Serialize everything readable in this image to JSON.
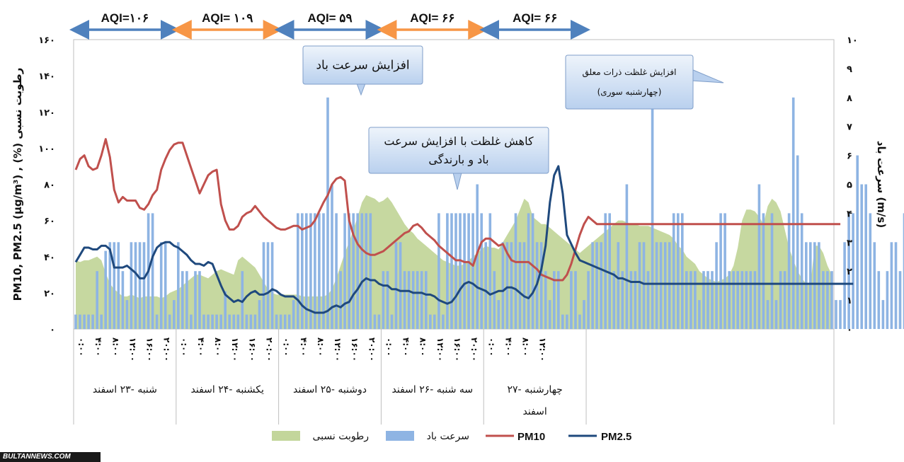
{
  "chart_data": {
    "type": "bar-line-area",
    "aqi_segments": [
      {
        "label": "AQI=۱۰۶",
        "color": "#4f81bd"
      },
      {
        "label": "AQI= ۱۰۹",
        "color": "#f79646"
      },
      {
        "label": "AQI= ۵۹",
        "color": "#4f81bd"
      },
      {
        "label": "AQI= ۶۶",
        "color": "#f79646"
      },
      {
        "label": "AQI= ۶۶",
        "color": "#4f81bd"
      }
    ],
    "left_axis": {
      "label": "PM10, PM2.5 (μg/m³) , (%) رطوبت نسبی",
      "range": [
        0,
        160
      ],
      "ticks": [
        "۰",
        "۲۰",
        "۴۰",
        "۶۰",
        "۸۰",
        "۱۰۰",
        "۱۲۰",
        "۱۴۰",
        "۱۶۰"
      ]
    },
    "right_axis": {
      "label": "سرعت باد (m/s)",
      "range": [
        0,
        10
      ],
      "ticks": [
        "۰",
        "۱",
        "۲",
        "۳",
        "۴",
        "۵",
        "۶",
        "۷",
        "۸",
        "۹",
        "۱۰"
      ]
    },
    "x_tick_labels": [
      "۰:۰۰",
      "۴:۰۰",
      "۸:۰۰",
      "۱۲:۰۰",
      "۱۶:۰۰",
      "۲۰:۰۰",
      "۰:۰۰",
      "۴:۰۰",
      "۸:۰۰",
      "۱۲:۰۰",
      "۱۶:۰۰",
      "۲۰:۰۰",
      "۰:۰۰",
      "۴:۰۰",
      "۸:۰۰",
      "۱۲:۰۰",
      "۱۶:۰۰",
      "۲۰:۰۰",
      "۰:۰۰",
      "۴:۰۰",
      "۸:۰۰",
      "۱۲:۰۰",
      "۱۶:۰۰",
      "۲۰:۰۰",
      "۰:۰۰",
      "۴:۰۰",
      "۸:۰۰",
      "۱۲:۰۰"
    ],
    "days": [
      "شنبه -۲۳ اسفند",
      "یکشنبه -۲۴ اسفند",
      "دوشنبه -۲۵ اسفند",
      "سه شنبه -۲۶ اسفند",
      "چهارشنبه -۲۷ اسفند"
    ],
    "points_per_day": 24,
    "series": [
      {
        "name": "رطوبت نسبی",
        "kind": "area",
        "axis": "left",
        "color": "#c3d69b",
        "values": [
          38,
          37,
          38,
          38,
          39,
          40,
          38,
          31,
          25,
          22,
          20,
          18,
          18,
          19,
          18,
          17,
          18,
          18,
          18,
          18,
          17,
          18,
          20,
          21,
          22,
          24,
          26,
          28,
          30,
          30,
          29,
          28,
          30,
          32,
          33,
          32,
          31,
          30,
          38,
          40,
          38,
          36,
          34,
          30,
          26,
          22,
          20,
          19,
          19,
          19,
          19,
          19,
          19,
          18,
          18,
          18,
          18,
          18,
          18,
          19,
          22,
          28,
          35,
          42,
          48,
          55,
          62,
          70,
          74,
          73,
          72,
          70,
          71,
          73,
          70,
          66,
          62,
          58,
          55,
          53,
          50,
          48,
          46,
          44,
          42,
          40,
          38,
          37,
          36,
          35,
          35,
          36,
          38,
          40,
          42,
          44,
          46,
          45,
          45,
          44,
          48,
          52,
          56,
          60,
          66,
          72,
          70,
          62,
          60,
          58,
          58,
          56,
          54,
          52,
          50,
          48,
          46,
          44,
          42,
          44,
          46,
          48,
          50,
          52,
          54,
          56,
          58,
          60,
          60,
          59,
          58,
          58,
          57,
          57,
          57,
          56,
          55,
          54,
          53,
          52,
          50,
          46,
          44,
          40,
          38,
          36,
          32,
          30,
          28,
          27,
          26,
          27,
          28,
          30,
          35,
          45,
          60,
          66,
          66,
          65,
          62,
          58,
          68,
          72,
          70,
          65,
          55,
          45,
          38,
          32,
          28,
          25,
          24,
          46,
          46,
          42,
          35,
          30
        ]
      },
      {
        "name": "سرعت باد",
        "kind": "bar",
        "axis": "right",
        "color": "#8eb4e3",
        "values": [
          0.5,
          0.5,
          0.5,
          0.5,
          0.5,
          2,
          0.5,
          2.7,
          3,
          3,
          3,
          2,
          1,
          3,
          3,
          3,
          3,
          4,
          4,
          0.5,
          3,
          3,
          0.5,
          1,
          3,
          2,
          2,
          0.5,
          2,
          2,
          0.5,
          0.5,
          0.5,
          0.5,
          0.5,
          1.3,
          0.5,
          0.5,
          0.5,
          2,
          0.5,
          0.5,
          0.5,
          1,
          3,
          3,
          3,
          0.5,
          0.5,
          0.5,
          0.5,
          1,
          4,
          4,
          4,
          4,
          4,
          4,
          4,
          8,
          5,
          4,
          2,
          4,
          4,
          4,
          4,
          4,
          4,
          4,
          0.5,
          0.5,
          2,
          2,
          0.5,
          3,
          3,
          2,
          2,
          2,
          2,
          2,
          2,
          0.5,
          0.5,
          4,
          0.5,
          4,
          4,
          4,
          4,
          4,
          4,
          4,
          5,
          4,
          3,
          4,
          2,
          1,
          3,
          3,
          3,
          4,
          3,
          3,
          4,
          4,
          3,
          3,
          2,
          1,
          2,
          2,
          0.5,
          0.5,
          2,
          2,
          0.5,
          1,
          2,
          3,
          3,
          3,
          4,
          4,
          2,
          3,
          2,
          5,
          2,
          2,
          3,
          3,
          2,
          8,
          3,
          3,
          3,
          3,
          4,
          4,
          4,
          2,
          2,
          2,
          1,
          2,
          2,
          2,
          3,
          4,
          4,
          2,
          2,
          2,
          2,
          2,
          2,
          2,
          5,
          4,
          1,
          4,
          1,
          2,
          2,
          4,
          8,
          6,
          4,
          3,
          3,
          3,
          3,
          2,
          2,
          2,
          1,
          1,
          3,
          4,
          4,
          6,
          5,
          5,
          4,
          3,
          2,
          1,
          2,
          3,
          3,
          2,
          4
        ]
      },
      {
        "name": "PM10",
        "kind": "line",
        "axis": "left",
        "color": "#c0504d",
        "values": [
          88,
          94,
          96,
          90,
          88,
          89,
          96,
          105,
          95,
          77,
          70,
          73,
          71,
          71,
          71,
          67,
          66,
          69,
          74,
          77,
          88,
          94,
          99,
          102,
          103,
          103,
          96,
          89,
          82,
          75,
          80,
          85,
          87,
          88,
          69,
          60,
          55,
          55,
          57,
          62,
          64,
          65,
          68,
          65,
          62,
          60,
          58,
          56,
          55,
          55,
          56,
          57,
          57,
          55,
          56,
          57,
          60,
          65,
          70,
          74,
          80,
          83,
          84,
          82,
          60,
          52,
          47,
          44,
          42,
          41,
          41,
          42,
          43,
          45,
          47,
          49,
          51,
          53,
          54,
          57,
          58,
          56,
          53,
          51,
          49,
          46,
          44,
          42,
          40,
          38,
          38,
          37,
          37,
          35,
          42,
          48,
          50,
          50,
          48,
          46,
          47,
          42,
          38,
          37,
          37,
          37,
          37,
          35,
          33,
          30,
          29,
          28,
          27,
          27,
          27,
          30,
          36,
          44,
          52,
          58,
          62,
          60,
          58,
          58,
          58,
          58,
          58,
          58,
          58,
          58,
          58,
          58,
          58,
          58,
          58,
          58,
          58,
          58,
          58,
          58,
          58,
          58,
          58,
          58,
          58,
          58,
          58,
          58,
          58,
          58,
          58,
          58,
          58,
          58,
          58,
          58,
          58,
          58,
          58,
          58,
          58,
          58,
          58,
          58,
          58,
          58,
          58,
          58,
          58,
          58,
          58,
          58,
          58,
          58,
          58,
          58,
          58,
          58,
          58,
          58
        ]
      },
      {
        "name": "PM2.5",
        "kind": "line",
        "axis": "left",
        "color": "#1f497d",
        "values": [
          37,
          41,
          45,
          45,
          44,
          44,
          46,
          46,
          44,
          34,
          34,
          34,
          35,
          33,
          31,
          28,
          28,
          32,
          40,
          45,
          47,
          48,
          48,
          46,
          45,
          43,
          41,
          38,
          36,
          36,
          35,
          37,
          36,
          30,
          24,
          19,
          17,
          15,
          16,
          15,
          18,
          20,
          21,
          19,
          19,
          20,
          22,
          21,
          19,
          18,
          18,
          18,
          16,
          13,
          11,
          10,
          9,
          9,
          9,
          10,
          12,
          13,
          12,
          14,
          15,
          19,
          22,
          26,
          28,
          27,
          27,
          25,
          24,
          24,
          22,
          22,
          21,
          21,
          21,
          20,
          20,
          20,
          19,
          19,
          18,
          16,
          15,
          14,
          15,
          18,
          22,
          25,
          26,
          25,
          23,
          22,
          21,
          19,
          20,
          21,
          21,
          23,
          23,
          22,
          20,
          18,
          17,
          20,
          25,
          33,
          46,
          70,
          85,
          90,
          75,
          52,
          47,
          42,
          38,
          37,
          36,
          35,
          34,
          33,
          32,
          31,
          30,
          28,
          28,
          27,
          26,
          26,
          26,
          25,
          25,
          25,
          25,
          25,
          25,
          25,
          25,
          25,
          25,
          25,
          25,
          25,
          25,
          25,
          25,
          25,
          25,
          25,
          25,
          25,
          25,
          25,
          25,
          25,
          25,
          25,
          25,
          25,
          25,
          25,
          25,
          25,
          25,
          25,
          25,
          25,
          25,
          25,
          25,
          25,
          25,
          25,
          25,
          25,
          25,
          25,
          25,
          25,
          25
        ]
      }
    ],
    "callouts": [
      {
        "text": "افزایش سرعت باد"
      },
      {
        "lines": [
          "کاهش غلظت با افزایش سرعت",
          "باد و بارندگی"
        ]
      },
      {
        "lines": [
          "افزایش غلظت ذرات معلق",
          "(چهارشنبه سوری)"
        ]
      }
    ]
  },
  "legend": [
    {
      "label": "رطوبت نسبی",
      "kind": "area",
      "color": "#c3d69b"
    },
    {
      "label": "سرعت باد",
      "kind": "bar",
      "color": "#8eb4e3"
    },
    {
      "label": "PM10",
      "kind": "line",
      "color": "#c0504d"
    },
    {
      "label": "PM2.5",
      "kind": "line",
      "color": "#1f497d"
    }
  ],
  "source": "BULTANNEWS.COM"
}
